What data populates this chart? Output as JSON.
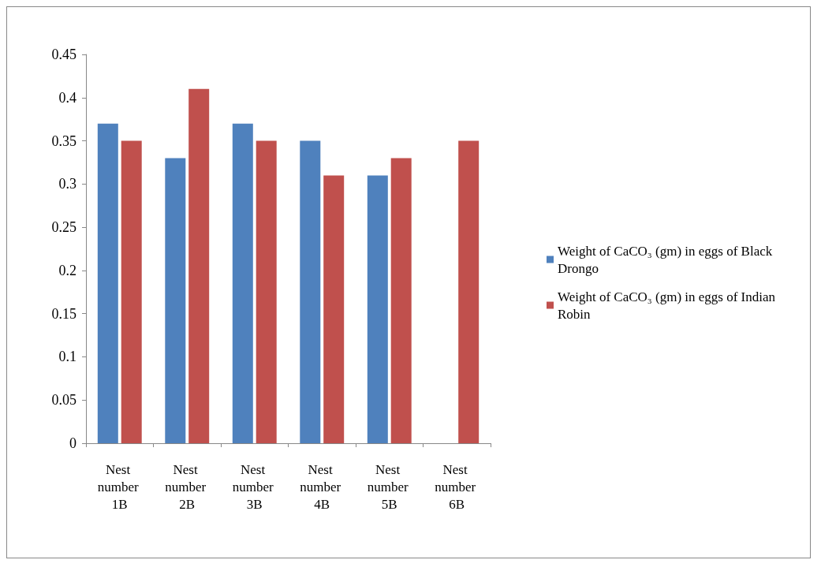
{
  "chart_data": {
    "type": "bar",
    "categories": [
      "Nest number 1B",
      "Nest number 2B",
      "Nest number 3B",
      "Nest number 4B",
      "Nest number 5B",
      "Nest number 6B"
    ],
    "series": [
      {
        "name": "Weight of CaCO₃ (gm) in eggs of Black Drongo",
        "color": "#4f81bd",
        "values": [
          0.37,
          0.33,
          0.37,
          0.35,
          0.31,
          0
        ]
      },
      {
        "name": "Weight of CaCO₃ (gm) in eggs of Indian Robin",
        "color": "#c0504d",
        "values": [
          0.35,
          0.41,
          0.35,
          0.31,
          0.33,
          0.35
        ]
      }
    ],
    "ylim": [
      0,
      0.45
    ],
    "yticks": [
      0,
      0.05,
      0.1,
      0.15,
      0.2,
      0.25,
      0.3,
      0.35,
      0.4,
      0.45
    ],
    "grid": false,
    "legend": "right"
  }
}
